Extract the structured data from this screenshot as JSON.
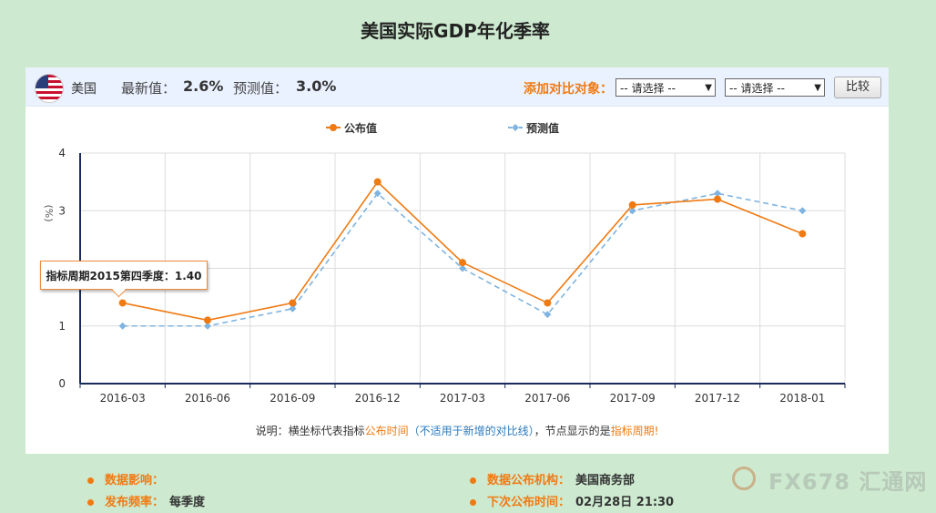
{
  "title": "美国实际GDP年化季率",
  "topbar": {
    "country": "美国",
    "latest_label": "最新值：",
    "latest_value": "2.6%",
    "forecast_label": "预测值：",
    "forecast_value": "3.0%",
    "compare_label": "添加对比对象：",
    "select1": "-- 请选择 --",
    "select2": "-- 请选择 --",
    "compare_button": "比较"
  },
  "chart_data": {
    "type": "line",
    "categories": [
      "2016-03",
      "2016-06",
      "2016-09",
      "2016-12",
      "2017-03",
      "2017-06",
      "2017-09",
      "2017-12",
      "2018-01"
    ],
    "series": [
      {
        "name": "公布值",
        "values": [
          1.4,
          1.1,
          1.4,
          3.5,
          2.1,
          1.4,
          3.1,
          3.2,
          2.6
        ],
        "color": "#f07a12",
        "style": "solid",
        "marker": "circle"
      },
      {
        "name": "预测值",
        "values": [
          1.0,
          1.0,
          1.3,
          3.3,
          2.0,
          1.2,
          3.0,
          3.3,
          3.0
        ],
        "color": "#7fb4e0",
        "style": "dashed",
        "marker": "diamond"
      }
    ],
    "ylim": [
      0,
      4
    ],
    "yticks": [
      "0",
      "1",
      "2",
      "3",
      "4"
    ],
    "ylabel": "(%)",
    "grid": true,
    "legend": "top-center"
  },
  "tooltip": "指标周期2015第四季度：1.40",
  "note": {
    "prefix": "说明：横坐标代表指标",
    "orange1": "公布时间",
    "blue": "（不适用于新增的对比线）",
    "middle": "，节点显示的是",
    "orange2": "指标周期!"
  },
  "info": {
    "impact_label": "数据影响：",
    "impact_value": "",
    "freq_label": "发布频率：",
    "freq_value": "每季度",
    "agency_label": "数据公布机构：",
    "agency_value": "美国商务部",
    "next_label": "下次公布时间：",
    "next_value": "02月28日 21:30"
  },
  "watermark": "FX678 汇通网"
}
